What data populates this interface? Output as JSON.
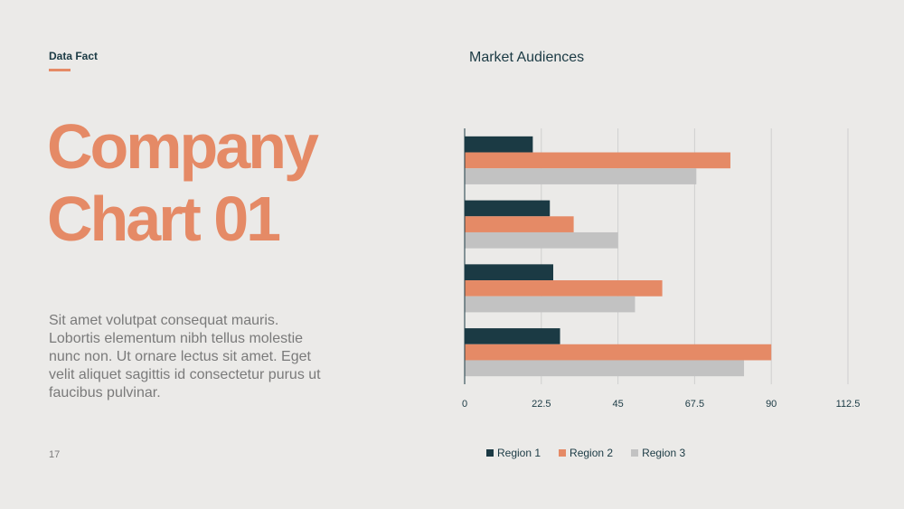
{
  "slide": {
    "kicker": "Data Fact",
    "title_line1": "Company",
    "title_line2": "Chart 01",
    "body": "Sit amet volutpat consequat mauris. Lobortis elementum nibh tellus molestie nunc non. Ut ornare lectus sit amet. Eget velit aliquet sagittis id consectetur purus ut faucibus pulvinar.",
    "page_number": "17"
  },
  "colors": {
    "accent": "#E58A66",
    "dark": "#1B3A44",
    "gray": "#C2C2C2",
    "background": "#EBEAE8"
  },
  "chart_data": {
    "type": "bar",
    "orientation": "horizontal",
    "title": "Market Audiences",
    "xlim": [
      0,
      112.5
    ],
    "xticks": [
      "0",
      "22.5",
      "45",
      "67.5",
      "90",
      "112.5"
    ],
    "grid": true,
    "legend_position": "bottom",
    "categories": [
      "",
      "",
      "",
      ""
    ],
    "series": [
      {
        "name": "Region 1",
        "color": "#1B3A44",
        "values": [
          20,
          25,
          26,
          28
        ]
      },
      {
        "name": "Region 2",
        "color": "#E58A66",
        "values": [
          78,
          32,
          58,
          90
        ]
      },
      {
        "name": "Region 3",
        "color": "#C2C2C2",
        "values": [
          68,
          45,
          50,
          82
        ]
      }
    ]
  }
}
